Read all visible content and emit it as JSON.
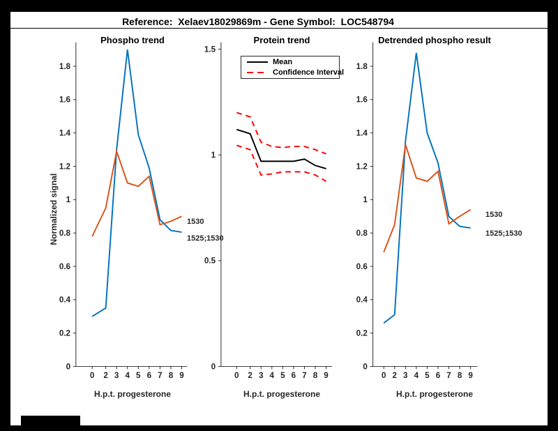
{
  "figure": {
    "title": "Reference:  Xelaev18029869m - Gene Symbol:  LOC548794"
  },
  "colors": {
    "blue": "#0072BD",
    "orange": "#D95319",
    "red": "#FF0000",
    "black": "#000000",
    "axis": "#262626"
  },
  "chart_data": [
    {
      "id": "phospho-trend",
      "type": "line",
      "title": "Phospho trend",
      "xlabel": "H.p.t. progesterone",
      "ylabel": "Normalized signal",
      "x": [
        0,
        2,
        3,
        4,
        5,
        6,
        7,
        8,
        9
      ],
      "x_tick_labels": [
        "0",
        "2",
        "3",
        "4",
        "5",
        "6",
        "7",
        "8",
        "9"
      ],
      "y_ticks": [
        0,
        0.2,
        0.4,
        0.6,
        0.8,
        1,
        1.2,
        1.4,
        1.6,
        1.8
      ],
      "y_tick_labels": [
        "0",
        "0.2",
        "0.4",
        "0.6",
        "0.8",
        "1",
        "1.2",
        "1.4",
        "1.6",
        "1.8"
      ],
      "ylim": [
        0,
        1.94
      ],
      "grid": false,
      "series": [
        {
          "name": "1525;1530",
          "color_key": "blue",
          "line_style": "solid",
          "values": [
            0.3,
            0.35,
            1.3,
            1.9,
            1.39,
            1.19,
            0.88,
            0.815,
            0.805
          ]
        },
        {
          "name": "1530",
          "color_key": "orange",
          "line_style": "solid",
          "values": [
            0.78,
            0.95,
            1.29,
            1.1,
            1.08,
            1.14,
            0.85,
            0.87,
            0.9
          ]
        }
      ]
    },
    {
      "id": "protein-trend",
      "type": "line",
      "title": "Protein trend",
      "xlabel": "H.p.t. progesterone",
      "ylabel": "",
      "x": [
        0,
        2,
        3,
        4,
        5,
        6,
        7,
        8,
        9
      ],
      "x_tick_labels": [
        "0",
        "2",
        "3",
        "4",
        "5",
        "6",
        "7",
        "8",
        "9"
      ],
      "y_ticks": [
        0,
        0.5,
        1,
        1.5
      ],
      "y_tick_labels": [
        "0",
        "0.5",
        "1",
        "1.5"
      ],
      "ylim": [
        0,
        1.53
      ],
      "grid": false,
      "legend": {
        "position": "top",
        "entries": [
          {
            "label": "Mean",
            "style": "solid",
            "color_key": "black"
          },
          {
            "label": "Confidence Interval",
            "style": "dashed",
            "color_key": "red"
          }
        ]
      },
      "series": [
        {
          "name": "Mean",
          "color_key": "black",
          "line_style": "solid",
          "values": [
            1.12,
            1.1,
            0.97,
            0.97,
            0.97,
            0.97,
            0.98,
            0.95,
            0.935
          ]
        },
        {
          "name": "Confidence Interval upper",
          "color_key": "red",
          "line_style": "dashed",
          "values": [
            1.2,
            1.18,
            1.06,
            1.04,
            1.035,
            1.04,
            1.04,
            1.025,
            1.005
          ]
        },
        {
          "name": "Confidence Interval lower",
          "color_key": "red",
          "line_style": "dashed",
          "values": [
            1.045,
            1.025,
            0.905,
            0.91,
            0.92,
            0.92,
            0.92,
            0.905,
            0.875
          ]
        }
      ]
    },
    {
      "id": "detrended-phospho-result",
      "type": "line",
      "title": "Detrended phospho result",
      "xlabel": "H.p.t. progesterone",
      "ylabel": "",
      "x": [
        0,
        2,
        3,
        4,
        5,
        6,
        7,
        8,
        9
      ],
      "x_tick_labels": [
        "0",
        "2",
        "3",
        "4",
        "5",
        "6",
        "7",
        "8",
        "9"
      ],
      "y_ticks": [
        0,
        0.2,
        0.4,
        0.6,
        0.8,
        1,
        1.2,
        1.4,
        1.6,
        1.8
      ],
      "y_tick_labels": [
        "0",
        "0.2",
        "0.4",
        "0.6",
        "0.8",
        "1",
        "1.2",
        "1.4",
        "1.6",
        "1.8"
      ],
      "ylim": [
        0,
        1.94
      ],
      "grid": false,
      "series": [
        {
          "name": "1525;1530",
          "color_key": "blue",
          "line_style": "solid",
          "values": [
            0.26,
            0.31,
            1.35,
            1.88,
            1.4,
            1.22,
            0.9,
            0.84,
            0.83
          ]
        },
        {
          "name": "1530",
          "color_key": "orange",
          "line_style": "solid",
          "values": [
            0.685,
            0.85,
            1.33,
            1.13,
            1.11,
            1.17,
            0.855,
            0.9,
            0.94
          ]
        }
      ]
    }
  ]
}
